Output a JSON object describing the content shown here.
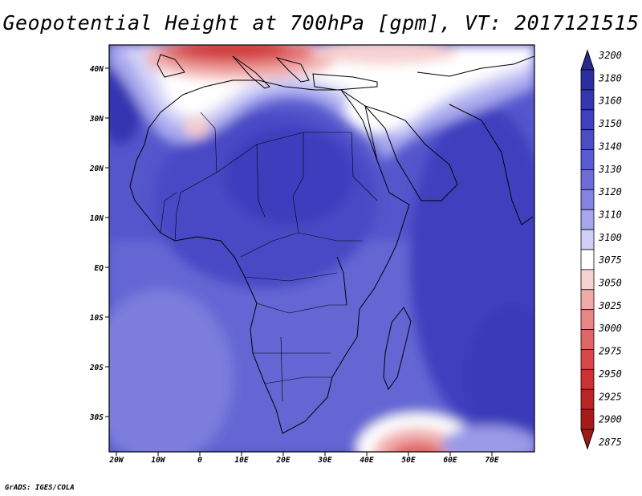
{
  "title": "Geopotential Height at 700hPa [gpm], VT: 2017121515",
  "credit": "GrADS: IGES/COLA",
  "axes": {
    "lat_labels": [
      "40N",
      "30N",
      "20N",
      "10N",
      "EQ",
      "10S",
      "20S",
      "30S"
    ],
    "lon_labels": [
      "20W",
      "10W",
      "0",
      "10E",
      "20E",
      "30E",
      "40E",
      "50E",
      "60E",
      "70E"
    ]
  },
  "colorbar": {
    "labels": [
      "3200",
      "3180",
      "3160",
      "3150",
      "3140",
      "3130",
      "3120",
      "3110",
      "3100",
      "3075",
      "3050",
      "3025",
      "3000",
      "2975",
      "2950",
      "2925",
      "2900",
      "2875"
    ],
    "colors": [
      "#2c2ea0",
      "#3436b2",
      "#3f40bf",
      "#4b4cc8",
      "#5a5ad2",
      "#6e6cdb",
      "#8484e3",
      "#a6a6ee",
      "#cfcff7",
      "#ffffff",
      "#f7d2d2",
      "#f0aaaa",
      "#e98787",
      "#e06565",
      "#d84848",
      "#cd3131",
      "#bd2323",
      "#a81a1a"
    ],
    "top_arrow_color": "#27298f",
    "bottom_arrow_color": "#a01818"
  }
}
